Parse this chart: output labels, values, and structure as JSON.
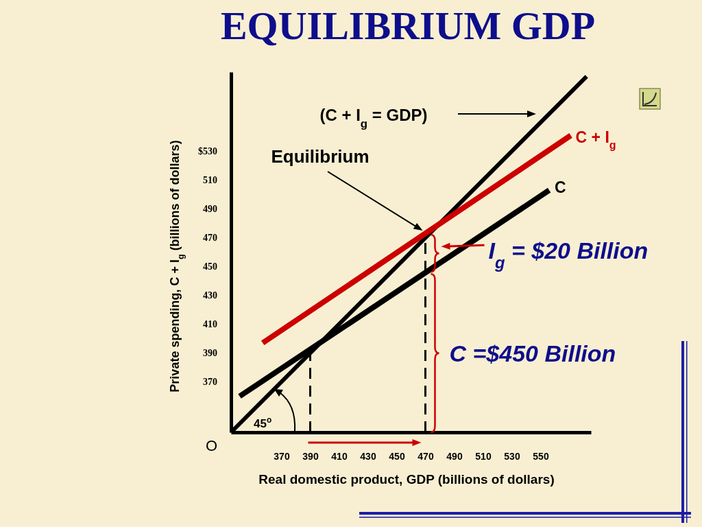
{
  "chart_data": {
    "type": "line",
    "title": "EQUILIBRIUM GDP",
    "xlabel": "Real domestic product, GDP (billions of dollars)",
    "ylabel": "Private spending, C + I$_{g}$ (billions of dollars)",
    "xlim": [
      335,
      585
    ],
    "ylim": [
      335,
      585
    ],
    "xticks": [
      370,
      390,
      410,
      430,
      450,
      470,
      490,
      510,
      530,
      550
    ],
    "yticks": [
      {
        "value": 530,
        "label": "$530"
      },
      510,
      490,
      470,
      450,
      430,
      410,
      390,
      370
    ],
    "series": [
      {
        "name": "(C + I$_{g}$ = GDP)",
        "color": "#000000",
        "x": [
          335,
          582
        ],
        "values": [
          335,
          582
        ]
      },
      {
        "name": "C + I$_{g}$",
        "color": "#cc0000",
        "x": [
          357,
          571
        ],
        "values": [
          397,
          541
        ]
      },
      {
        "name": "C",
        "color": "#000000",
        "x": [
          341,
          556
        ],
        "values": [
          360,
          503
        ]
      },
      {
        "color": "#000000",
        "x": [
          390,
          390
        ],
        "values": [
          335,
          390
        ],
        "line_style": "dashed"
      },
      {
        "color": "#000000",
        "x": [
          470,
          470
        ],
        "values": [
          335,
          470
        ],
        "line_style": "dashed"
      }
    ],
    "annotations": [
      "Equilibrium",
      "I$_{g}$ = $20 Billion",
      "C =$450 Billion",
      "45$^{o}$",
      "O"
    ]
  }
}
